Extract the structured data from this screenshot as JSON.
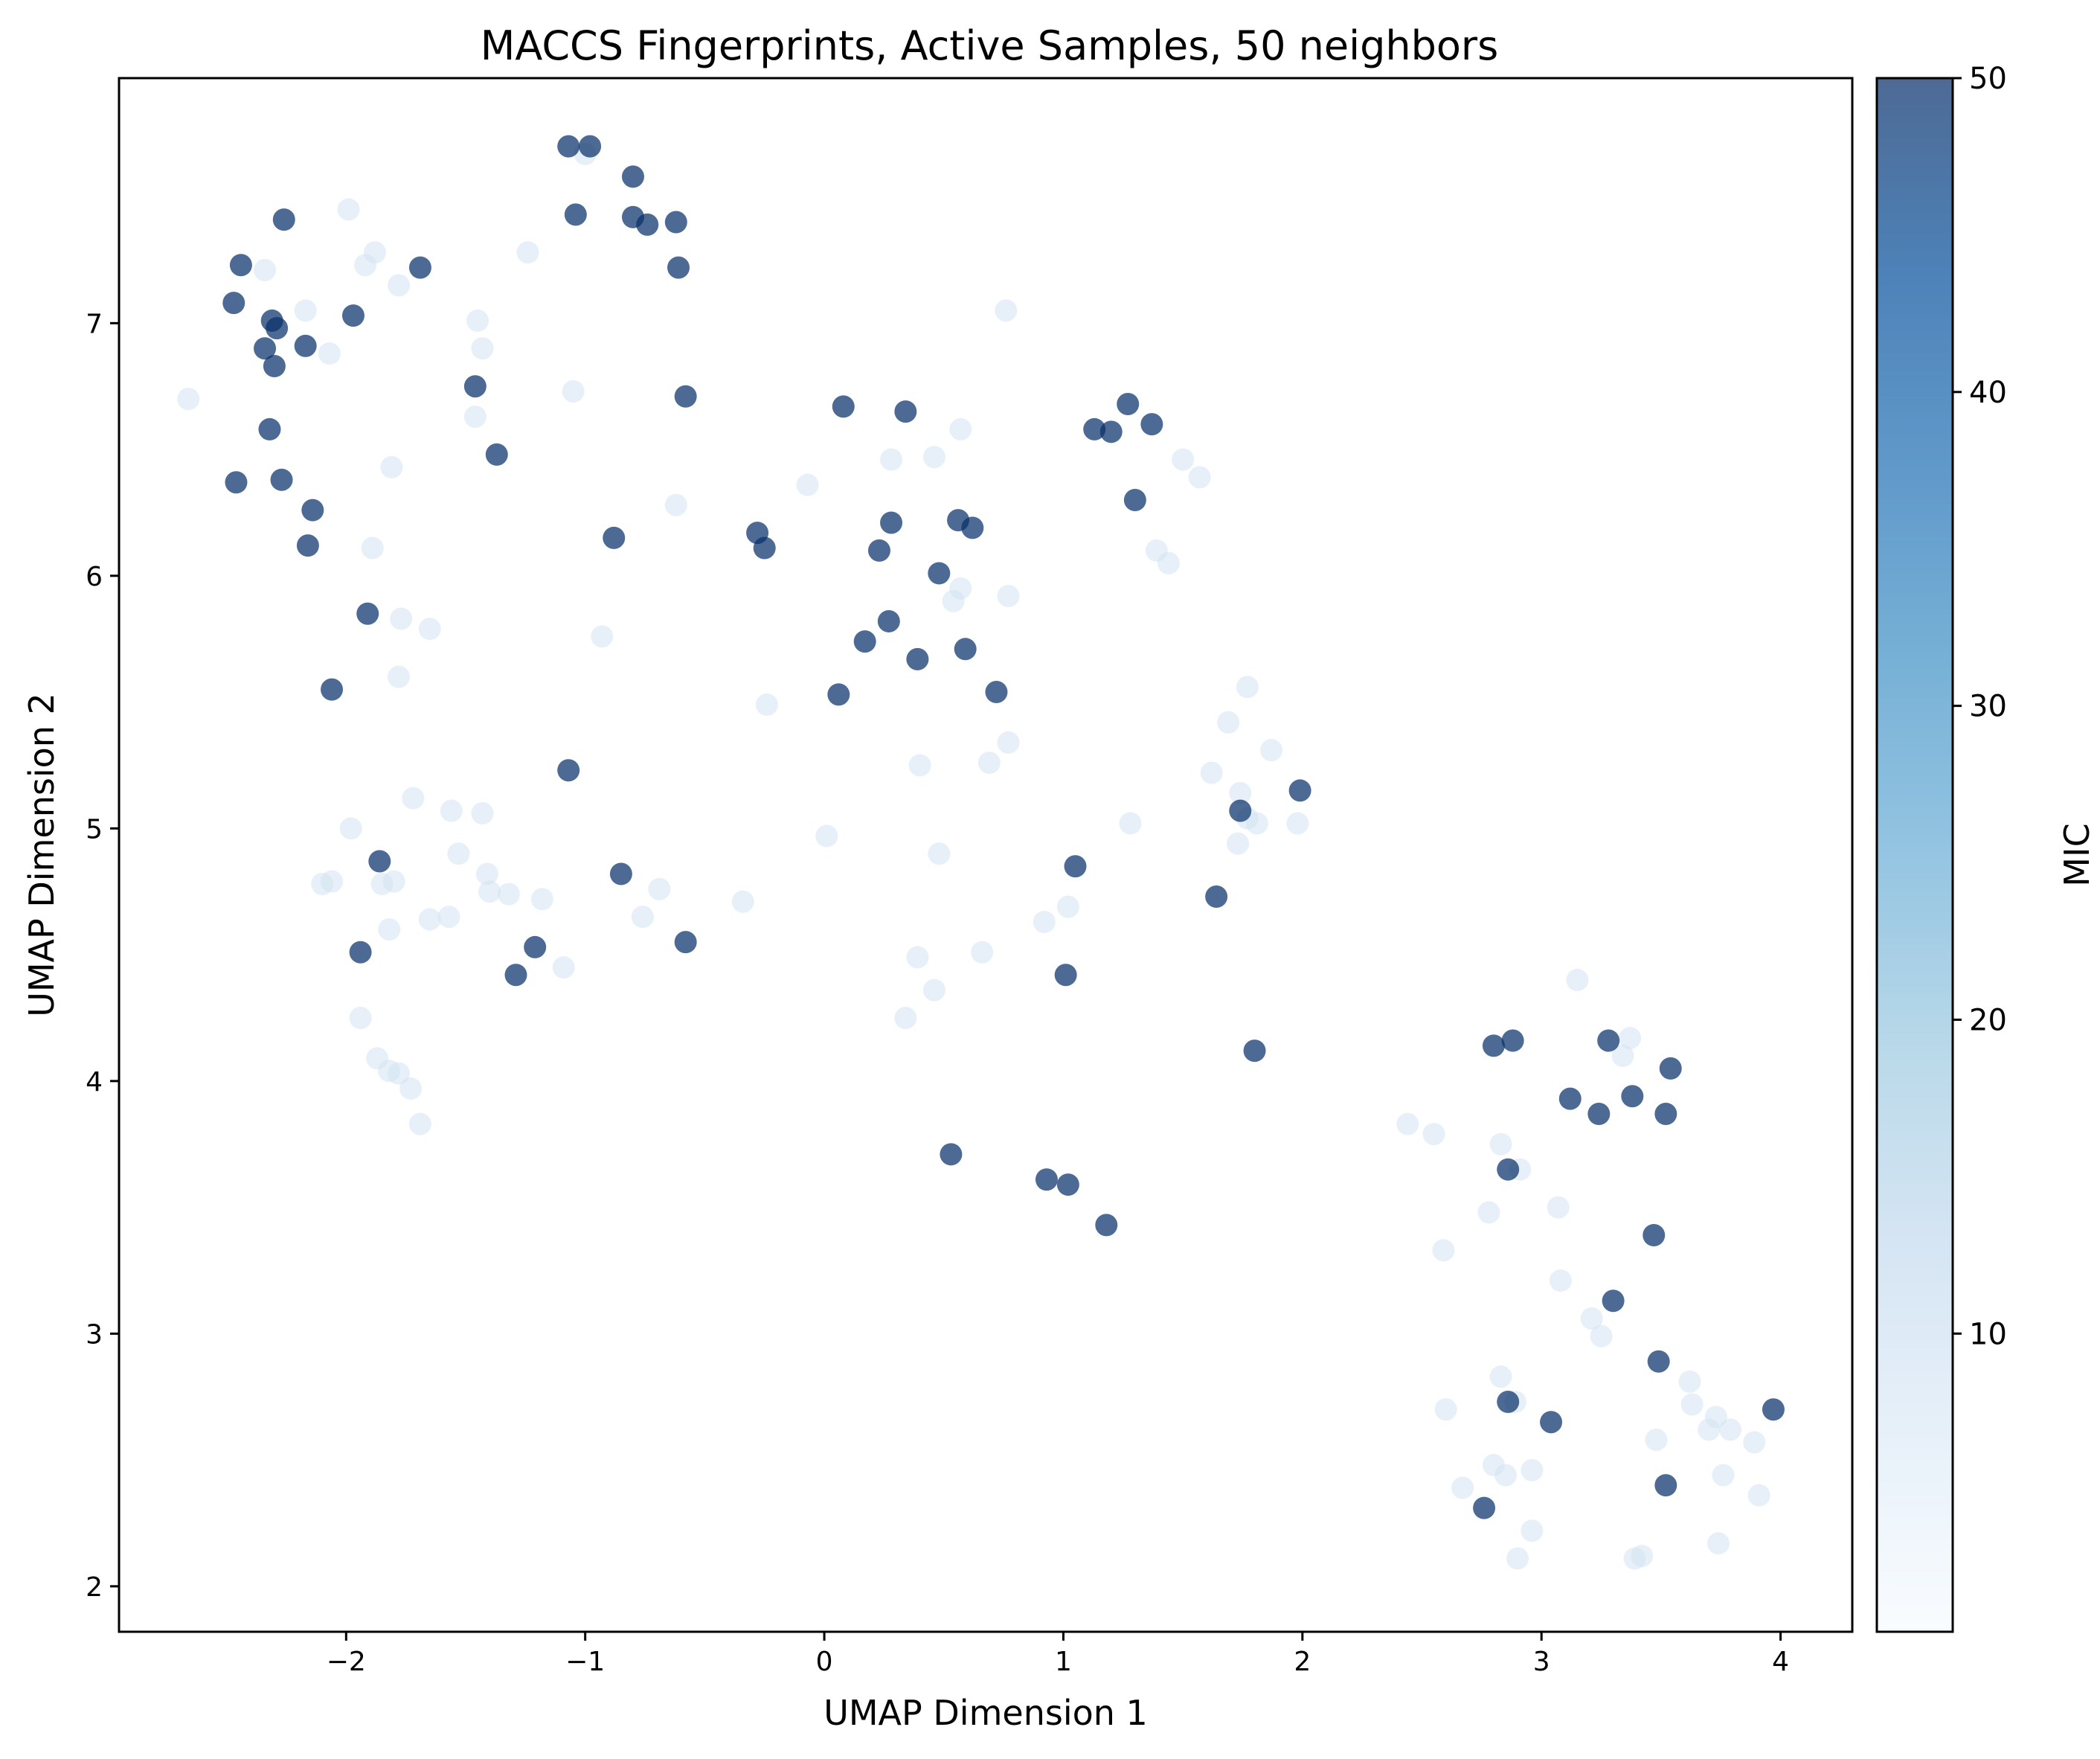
{
  "chart_data": {
    "type": "scatter",
    "title": "MACCS Fingerprints, Active Samples, 50 neighbors",
    "xlabel": "UMAP Dimension 1",
    "ylabel": "UMAP Dimension 2",
    "xlim": [
      -2.95,
      4.3
    ],
    "ylim": [
      1.82,
      7.97
    ],
    "xticks": [
      -2,
      -1,
      0,
      1,
      2,
      3,
      4
    ],
    "xtick_labels": [
      "−2",
      "−1",
      "0",
      "1",
      "2",
      "3",
      "4"
    ],
    "yticks": [
      2,
      3,
      4,
      5,
      6,
      7
    ],
    "ytick_labels": [
      "2",
      "3",
      "4",
      "5",
      "6",
      "7"
    ],
    "colorbar": {
      "label": "MIC",
      "range": [
        0.5,
        50
      ],
      "ticks": [
        10,
        20,
        30,
        40,
        50
      ],
      "tick_labels": [
        "10",
        "20",
        "30",
        "40",
        "50"
      ],
      "colormap": "Blues",
      "stops": [
        "#f7fbff",
        "#deebf7",
        "#c6dbef",
        "#9ecae1",
        "#6baed6",
        "#4292c6",
        "#2171b5",
        "#08519c",
        "#08306b"
      ]
    },
    "high_color": "#08306b",
    "low_color": "#d0e1f2",
    "points_high": [
      [
        -1.07,
        7.7
      ],
      [
        -0.98,
        7.7
      ],
      [
        -0.8,
        7.58
      ],
      [
        -1.04,
        7.43
      ],
      [
        -0.8,
        7.42
      ],
      [
        -0.74,
        7.39
      ],
      [
        -0.62,
        7.4
      ],
      [
        -0.61,
        7.22
      ],
      [
        -0.58,
        6.71
      ],
      [
        -2.26,
        7.41
      ],
      [
        -2.44,
        7.23
      ],
      [
        -1.69,
        7.22
      ],
      [
        -2.47,
        7.08
      ],
      [
        -2.31,
        7.01
      ],
      [
        -2.29,
        6.98
      ],
      [
        -1.97,
        7.03
      ],
      [
        -2.34,
        6.9
      ],
      [
        -2.17,
        6.91
      ],
      [
        -2.3,
        6.83
      ],
      [
        -1.46,
        6.75
      ],
      [
        -2.32,
        6.58
      ],
      [
        -1.37,
        6.48
      ],
      [
        -2.46,
        6.37
      ],
      [
        -2.27,
        6.38
      ],
      [
        -2.14,
        6.26
      ],
      [
        -2.16,
        6.12
      ],
      [
        -1.91,
        5.85
      ],
      [
        -2.06,
        5.55
      ],
      [
        -1.86,
        4.87
      ],
      [
        -1.94,
        4.51
      ],
      [
        -1.07,
        5.23
      ],
      [
        -0.85,
        4.82
      ],
      [
        -1.21,
        4.53
      ],
      [
        -1.29,
        4.42
      ],
      [
        -0.58,
        4.55
      ],
      [
        -0.88,
        6.15
      ],
      [
        -0.28,
        6.17
      ],
      [
        -0.25,
        6.11
      ],
      [
        0.08,
        6.67
      ],
      [
        0.34,
        6.65
      ],
      [
        0.28,
        6.21
      ],
      [
        0.56,
        6.22
      ],
      [
        0.62,
        6.19
      ],
      [
        0.23,
        6.1
      ],
      [
        0.48,
        6.01
      ],
      [
        0.27,
        5.82
      ],
      [
        0.17,
        5.74
      ],
      [
        0.39,
        5.67
      ],
      [
        0.59,
        5.71
      ],
      [
        0.72,
        5.54
      ],
      [
        0.06,
        5.53
      ],
      [
        1.13,
        6.58
      ],
      [
        1.2,
        6.57
      ],
      [
        1.27,
        6.68
      ],
      [
        1.37,
        6.6
      ],
      [
        1.3,
        6.3
      ],
      [
        1.74,
        5.07
      ],
      [
        1.99,
        5.15
      ],
      [
        1.05,
        4.85
      ],
      [
        1.64,
        4.73
      ],
      [
        1.01,
        4.42
      ],
      [
        1.8,
        4.12
      ],
      [
        0.53,
        3.71
      ],
      [
        0.93,
        3.61
      ],
      [
        1.02,
        3.59
      ],
      [
        1.18,
        3.43
      ],
      [
        2.8,
        4.14
      ],
      [
        2.88,
        4.16
      ],
      [
        3.28,
        4.16
      ],
      [
        3.54,
        4.05
      ],
      [
        3.38,
        3.94
      ],
      [
        3.12,
        3.93
      ],
      [
        3.24,
        3.87
      ],
      [
        3.52,
        3.87
      ],
      [
        2.86,
        3.65
      ],
      [
        3.47,
        3.39
      ],
      [
        3.3,
        3.13
      ],
      [
        3.49,
        2.89
      ],
      [
        2.86,
        2.73
      ],
      [
        3.04,
        2.65
      ],
      [
        3.97,
        2.7
      ],
      [
        3.52,
        2.4
      ],
      [
        2.76,
        2.31
      ]
    ],
    "points_low": [
      [
        -2.66,
        6.7
      ],
      [
        -2.34,
        7.21
      ],
      [
        -1.99,
        7.45
      ],
      [
        -1.88,
        7.28
      ],
      [
        -1.92,
        7.23
      ],
      [
        -1.78,
        7.15
      ],
      [
        -2.17,
        7.05
      ],
      [
        -2.07,
        6.88
      ],
      [
        -1.45,
        7.01
      ],
      [
        -1.43,
        6.9
      ],
      [
        -1.46,
        6.63
      ],
      [
        -1.05,
        6.73
      ],
      [
        -1.24,
        7.28
      ],
      [
        -1.0,
        7.67
      ],
      [
        -1.81,
        6.43
      ],
      [
        -1.89,
        6.11
      ],
      [
        -1.77,
        5.83
      ],
      [
        -1.65,
        5.79
      ],
      [
        -1.78,
        5.6
      ],
      [
        -0.93,
        5.76
      ],
      [
        -0.62,
        6.28
      ],
      [
        -0.24,
        5.49
      ],
      [
        -1.98,
        5.0
      ],
      [
        -1.72,
        5.12
      ],
      [
        -1.56,
        5.07
      ],
      [
        -1.43,
        5.06
      ],
      [
        -1.53,
        4.9
      ],
      [
        -2.1,
        4.78
      ],
      [
        -2.06,
        4.79
      ],
      [
        -1.85,
        4.78
      ],
      [
        -1.8,
        4.79
      ],
      [
        -1.41,
        4.82
      ],
      [
        -1.4,
        4.75
      ],
      [
        -1.32,
        4.74
      ],
      [
        -1.18,
        4.72
      ],
      [
        -1.82,
        4.6
      ],
      [
        -1.65,
        4.64
      ],
      [
        -1.57,
        4.65
      ],
      [
        -0.76,
        4.65
      ],
      [
        -0.69,
        4.76
      ],
      [
        -0.34,
        4.71
      ],
      [
        -1.09,
        4.45
      ],
      [
        -1.94,
        4.25
      ],
      [
        -1.87,
        4.09
      ],
      [
        -1.82,
        4.04
      ],
      [
        -1.78,
        4.03
      ],
      [
        -1.73,
        3.97
      ],
      [
        -1.69,
        3.83
      ],
      [
        -0.07,
        6.36
      ],
      [
        0.28,
        6.46
      ],
      [
        0.46,
        6.47
      ],
      [
        0.57,
        6.58
      ],
      [
        0.76,
        7.05
      ],
      [
        0.57,
        5.95
      ],
      [
        0.54,
        5.9
      ],
      [
        0.77,
        5.92
      ],
      [
        0.4,
        5.25
      ],
      [
        0.69,
        5.26
      ],
      [
        0.77,
        5.34
      ],
      [
        0.01,
        4.97
      ],
      [
        0.48,
        4.9
      ],
      [
        0.39,
        4.49
      ],
      [
        0.46,
        4.36
      ],
      [
        0.34,
        4.25
      ],
      [
        0.66,
        4.51
      ],
      [
        0.92,
        4.63
      ],
      [
        1.02,
        4.69
      ],
      [
        1.28,
        5.02
      ],
      [
        1.39,
        6.1
      ],
      [
        1.44,
        6.05
      ],
      [
        1.5,
        6.46
      ],
      [
        1.57,
        6.39
      ],
      [
        1.62,
        5.22
      ],
      [
        1.69,
        5.42
      ],
      [
        1.77,
        5.56
      ],
      [
        1.87,
        5.31
      ],
      [
        1.74,
        5.14
      ],
      [
        1.77,
        5.04
      ],
      [
        1.81,
        5.02
      ],
      [
        1.73,
        4.94
      ],
      [
        1.98,
        5.02
      ],
      [
        2.44,
        3.83
      ],
      [
        2.55,
        3.79
      ],
      [
        2.83,
        3.75
      ],
      [
        2.91,
        3.65
      ],
      [
        2.78,
        3.48
      ],
      [
        3.07,
        3.5
      ],
      [
        2.59,
        3.33
      ],
      [
        3.08,
        3.21
      ],
      [
        3.21,
        3.06
      ],
      [
        3.25,
        2.99
      ],
      [
        3.15,
        4.4
      ],
      [
        3.37,
        4.17
      ],
      [
        3.34,
        4.1
      ],
      [
        2.83,
        2.83
      ],
      [
        2.89,
        2.73
      ],
      [
        2.6,
        2.7
      ],
      [
        3.62,
        2.81
      ],
      [
        3.63,
        2.72
      ],
      [
        3.73,
        2.67
      ],
      [
        3.7,
        2.62
      ],
      [
        3.79,
        2.62
      ],
      [
        3.48,
        2.58
      ],
      [
        3.89,
        2.57
      ],
      [
        2.8,
        2.48
      ],
      [
        2.85,
        2.44
      ],
      [
        2.96,
        2.46
      ],
      [
        2.67,
        2.39
      ],
      [
        3.91,
        2.36
      ],
      [
        2.96,
        2.22
      ],
      [
        3.76,
        2.44
      ],
      [
        3.74,
        2.17
      ],
      [
        2.9,
        2.11
      ],
      [
        3.39,
        2.11
      ],
      [
        3.42,
        2.12
      ]
    ]
  }
}
